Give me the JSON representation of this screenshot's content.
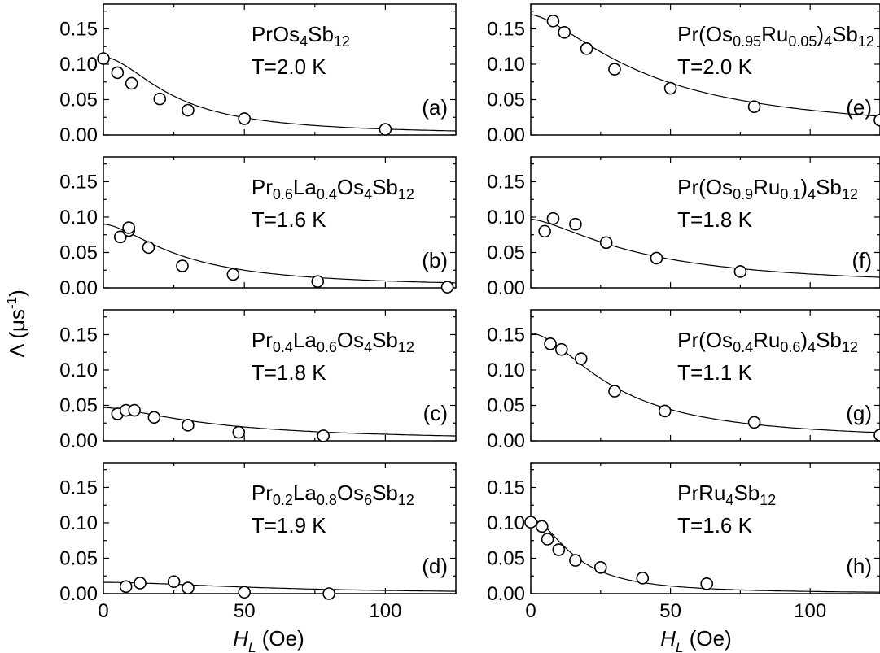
{
  "ylabel": "Λ (μs⁻¹)",
  "xlabel": "H_L (Oe)",
  "chart_data": [
    {
      "type": "scatter",
      "panel": "(a)",
      "label_parts": [
        [
          "PrOs",
          ""
        ],
        [
          "4",
          "sub"
        ],
        [
          "Sb",
          ""
        ],
        [
          "12",
          "sub"
        ]
      ],
      "temperature": "T=2.0 K",
      "x": [
        0,
        5,
        10,
        20,
        30,
        50,
        100
      ],
      "y": [
        0.108,
        0.088,
        0.073,
        0.051,
        0.035,
        0.023,
        0.008
      ],
      "fit": {
        "a": 0.11,
        "h0": 25,
        "p": 1.8
      },
      "xlim": [
        0,
        125
      ],
      "ylim": [
        0,
        0.185
      ],
      "yticks": [
        0,
        0.05,
        0.1,
        0.15
      ],
      "xticks": [
        0,
        50,
        100
      ]
    },
    {
      "type": "scatter",
      "panel": "(b)",
      "label_parts": [
        [
          "Pr",
          ""
        ],
        [
          "0.6",
          "sub"
        ],
        [
          "La",
          ""
        ],
        [
          "0.4",
          "sub"
        ],
        [
          "Os",
          ""
        ],
        [
          "4",
          "sub"
        ],
        [
          "Sb",
          ""
        ],
        [
          "12",
          "sub"
        ]
      ],
      "temperature": "T=1.6 K",
      "x": [
        6,
        9,
        9,
        16,
        28,
        46,
        76,
        122
      ],
      "y": [
        0.072,
        0.081,
        0.085,
        0.057,
        0.031,
        0.019,
        0.009,
        0.001
      ],
      "fit": {
        "a": 0.09,
        "h0": 28,
        "p": 1.65
      },
      "xlim": [
        0,
        125
      ],
      "ylim": [
        0,
        0.185
      ],
      "yticks": [
        0,
        0.05,
        0.1,
        0.15
      ],
      "xticks": [
        0,
        50,
        100
      ]
    },
    {
      "type": "scatter",
      "panel": "(c)",
      "label_parts": [
        [
          "Pr",
          ""
        ],
        [
          "0.4",
          "sub"
        ],
        [
          "La",
          ""
        ],
        [
          "0.6",
          "sub"
        ],
        [
          "Os",
          ""
        ],
        [
          "4",
          "sub"
        ],
        [
          "Sb",
          ""
        ],
        [
          "12",
          "sub"
        ]
      ],
      "temperature": "T=1.8 K",
      "x": [
        5,
        8,
        11,
        18,
        30,
        48,
        78
      ],
      "y": [
        0.038,
        0.043,
        0.043,
        0.033,
        0.022,
        0.012,
        0.007
      ],
      "fit": {
        "a": 0.047,
        "h0": 40,
        "p": 1.55
      },
      "xlim": [
        0,
        125
      ],
      "ylim": [
        0,
        0.185
      ],
      "yticks": [
        0,
        0.05,
        0.1,
        0.15
      ],
      "xticks": [
        0,
        50,
        100
      ]
    },
    {
      "type": "scatter",
      "panel": "(d)",
      "label_parts": [
        [
          "Pr",
          ""
        ],
        [
          "0.2",
          "sub"
        ],
        [
          "La",
          ""
        ],
        [
          "0.8",
          "sub"
        ],
        [
          "Os",
          ""
        ],
        [
          "6",
          "sub"
        ],
        [
          "Sb",
          ""
        ],
        [
          "12",
          "sub"
        ]
      ],
      "temperature": "T=1.9 K",
      "x": [
        8,
        13,
        25,
        30,
        50,
        80
      ],
      "y": [
        0.01,
        0.015,
        0.017,
        0.008,
        0.002,
        0.0
      ],
      "fit": {
        "a": 0.016,
        "h0": 60,
        "p": 1.8
      },
      "xlim": [
        0,
        125
      ],
      "ylim": [
        0,
        0.185
      ],
      "yticks": [
        0,
        0.05,
        0.1,
        0.15
      ],
      "xticks": [
        0,
        50,
        100
      ]
    },
    {
      "type": "scatter",
      "panel": "(e)",
      "label_parts": [
        [
          "Pr(Os",
          ""
        ],
        [
          "0.95",
          "sub"
        ],
        [
          "Ru",
          ""
        ],
        [
          "0.05",
          "sub"
        ],
        [
          ")",
          ""
        ],
        [
          "4",
          "sub"
        ],
        [
          "Sb",
          ""
        ],
        [
          "12",
          "sub"
        ]
      ],
      "temperature": "T=2.0 K",
      "x": [
        8,
        12,
        20,
        30,
        50,
        80,
        125
      ],
      "y": [
        0.161,
        0.145,
        0.122,
        0.093,
        0.066,
        0.04,
        0.021
      ],
      "fit": {
        "a": 0.17,
        "h0": 42,
        "p": 1.55
      },
      "xlim": [
        0,
        125
      ],
      "ylim": [
        0,
        0.185
      ],
      "yticks": [
        0,
        0.05,
        0.1,
        0.15
      ],
      "xticks": [
        0,
        50,
        100
      ]
    },
    {
      "type": "scatter",
      "panel": "(f)",
      "label_parts": [
        [
          "Pr(Os",
          ""
        ],
        [
          "0.9",
          "sub"
        ],
        [
          "Ru",
          ""
        ],
        [
          "0.1",
          "sub"
        ],
        [
          ")",
          ""
        ],
        [
          "4",
          "sub"
        ],
        [
          "Sb",
          ""
        ],
        [
          "12",
          "sub"
        ]
      ],
      "temperature": "T=1.8 K",
      "x": [
        5,
        8,
        16,
        27,
        45,
        75
      ],
      "y": [
        0.08,
        0.098,
        0.09,
        0.064,
        0.042,
        0.023
      ],
      "fit": {
        "a": 0.097,
        "h0": 40,
        "p": 1.5
      },
      "xlim": [
        0,
        125
      ],
      "ylim": [
        0,
        0.185
      ],
      "yticks": [
        0,
        0.05,
        0.1,
        0.15
      ],
      "xticks": [
        0,
        50,
        100
      ]
    },
    {
      "type": "scatter",
      "panel": "(g)",
      "label_parts": [
        [
          "Pr(Os",
          ""
        ],
        [
          "0.4",
          "sub"
        ],
        [
          "Ru",
          ""
        ],
        [
          "0.6",
          "sub"
        ],
        [
          ")",
          ""
        ],
        [
          "4",
          "sub"
        ],
        [
          "Sb",
          ""
        ],
        [
          "12",
          "sub"
        ]
      ],
      "temperature": "T=1.1 K",
      "x": [
        7,
        11,
        18,
        30,
        48,
        80,
        125
      ],
      "y": [
        0.137,
        0.129,
        0.116,
        0.07,
        0.042,
        0.026,
        0.008
      ],
      "fit": {
        "a": 0.152,
        "h0": 30,
        "p": 1.75
      },
      "xlim": [
        0,
        125
      ],
      "ylim": [
        0,
        0.185
      ],
      "yticks": [
        0,
        0.05,
        0.1,
        0.15
      ],
      "xticks": [
        0,
        50,
        100
      ]
    },
    {
      "type": "scatter",
      "panel": "(h)",
      "label_parts": [
        [
          "PrRu",
          ""
        ],
        [
          "4",
          "sub"
        ],
        [
          "Sb",
          ""
        ],
        [
          "12",
          "sub"
        ]
      ],
      "temperature": "T=1.6 K",
      "x": [
        0,
        4,
        6,
        10,
        16,
        25,
        40,
        63
      ],
      "y": [
        0.101,
        0.095,
        0.077,
        0.062,
        0.047,
        0.037,
        0.022,
        0.014
      ],
      "fit": {
        "a": 0.105,
        "h0": 16,
        "p": 1.9
      },
      "xlim": [
        0,
        125
      ],
      "ylim": [
        0,
        0.185
      ],
      "yticks": [
        0,
        0.05,
        0.1,
        0.15
      ],
      "xticks": [
        0,
        50,
        100
      ]
    }
  ]
}
